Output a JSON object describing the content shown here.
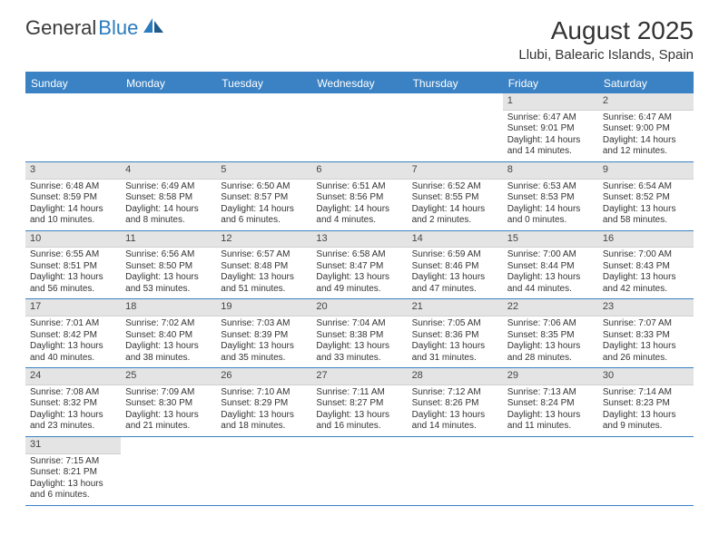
{
  "brand": {
    "part1": "General",
    "part2": "Blue"
  },
  "title": "August 2025",
  "location": "Llubi, Balearic Islands, Spain",
  "colors": {
    "header_bg": "#3b82c4",
    "header_text": "#ffffff",
    "date_bar_bg": "#e4e4e4",
    "border": "#3b82c4",
    "text": "#333333"
  },
  "day_headers": [
    "Sunday",
    "Monday",
    "Tuesday",
    "Wednesday",
    "Thursday",
    "Friday",
    "Saturday"
  ],
  "weeks": [
    [
      null,
      null,
      null,
      null,
      null,
      {
        "d": "1",
        "sr": "6:47 AM",
        "ss": "9:01 PM",
        "dl": "14 hours and 14 minutes."
      },
      {
        "d": "2",
        "sr": "6:47 AM",
        "ss": "9:00 PM",
        "dl": "14 hours and 12 minutes."
      }
    ],
    [
      {
        "d": "3",
        "sr": "6:48 AM",
        "ss": "8:59 PM",
        "dl": "14 hours and 10 minutes."
      },
      {
        "d": "4",
        "sr": "6:49 AM",
        "ss": "8:58 PM",
        "dl": "14 hours and 8 minutes."
      },
      {
        "d": "5",
        "sr": "6:50 AM",
        "ss": "8:57 PM",
        "dl": "14 hours and 6 minutes."
      },
      {
        "d": "6",
        "sr": "6:51 AM",
        "ss": "8:56 PM",
        "dl": "14 hours and 4 minutes."
      },
      {
        "d": "7",
        "sr": "6:52 AM",
        "ss": "8:55 PM",
        "dl": "14 hours and 2 minutes."
      },
      {
        "d": "8",
        "sr": "6:53 AM",
        "ss": "8:53 PM",
        "dl": "14 hours and 0 minutes."
      },
      {
        "d": "9",
        "sr": "6:54 AM",
        "ss": "8:52 PM",
        "dl": "13 hours and 58 minutes."
      }
    ],
    [
      {
        "d": "10",
        "sr": "6:55 AM",
        "ss": "8:51 PM",
        "dl": "13 hours and 56 minutes."
      },
      {
        "d": "11",
        "sr": "6:56 AM",
        "ss": "8:50 PM",
        "dl": "13 hours and 53 minutes."
      },
      {
        "d": "12",
        "sr": "6:57 AM",
        "ss": "8:48 PM",
        "dl": "13 hours and 51 minutes."
      },
      {
        "d": "13",
        "sr": "6:58 AM",
        "ss": "8:47 PM",
        "dl": "13 hours and 49 minutes."
      },
      {
        "d": "14",
        "sr": "6:59 AM",
        "ss": "8:46 PM",
        "dl": "13 hours and 47 minutes."
      },
      {
        "d": "15",
        "sr": "7:00 AM",
        "ss": "8:44 PM",
        "dl": "13 hours and 44 minutes."
      },
      {
        "d": "16",
        "sr": "7:00 AM",
        "ss": "8:43 PM",
        "dl": "13 hours and 42 minutes."
      }
    ],
    [
      {
        "d": "17",
        "sr": "7:01 AM",
        "ss": "8:42 PM",
        "dl": "13 hours and 40 minutes."
      },
      {
        "d": "18",
        "sr": "7:02 AM",
        "ss": "8:40 PM",
        "dl": "13 hours and 38 minutes."
      },
      {
        "d": "19",
        "sr": "7:03 AM",
        "ss": "8:39 PM",
        "dl": "13 hours and 35 minutes."
      },
      {
        "d": "20",
        "sr": "7:04 AM",
        "ss": "8:38 PM",
        "dl": "13 hours and 33 minutes."
      },
      {
        "d": "21",
        "sr": "7:05 AM",
        "ss": "8:36 PM",
        "dl": "13 hours and 31 minutes."
      },
      {
        "d": "22",
        "sr": "7:06 AM",
        "ss": "8:35 PM",
        "dl": "13 hours and 28 minutes."
      },
      {
        "d": "23",
        "sr": "7:07 AM",
        "ss": "8:33 PM",
        "dl": "13 hours and 26 minutes."
      }
    ],
    [
      {
        "d": "24",
        "sr": "7:08 AM",
        "ss": "8:32 PM",
        "dl": "13 hours and 23 minutes."
      },
      {
        "d": "25",
        "sr": "7:09 AM",
        "ss": "8:30 PM",
        "dl": "13 hours and 21 minutes."
      },
      {
        "d": "26",
        "sr": "7:10 AM",
        "ss": "8:29 PM",
        "dl": "13 hours and 18 minutes."
      },
      {
        "d": "27",
        "sr": "7:11 AM",
        "ss": "8:27 PM",
        "dl": "13 hours and 16 minutes."
      },
      {
        "d": "28",
        "sr": "7:12 AM",
        "ss": "8:26 PM",
        "dl": "13 hours and 14 minutes."
      },
      {
        "d": "29",
        "sr": "7:13 AM",
        "ss": "8:24 PM",
        "dl": "13 hours and 11 minutes."
      },
      {
        "d": "30",
        "sr": "7:14 AM",
        "ss": "8:23 PM",
        "dl": "13 hours and 9 minutes."
      }
    ],
    [
      {
        "d": "31",
        "sr": "7:15 AM",
        "ss": "8:21 PM",
        "dl": "13 hours and 6 minutes."
      },
      null,
      null,
      null,
      null,
      null,
      null
    ]
  ],
  "labels": {
    "sunrise": "Sunrise:",
    "sunset": "Sunset:",
    "daylight": "Daylight:"
  }
}
